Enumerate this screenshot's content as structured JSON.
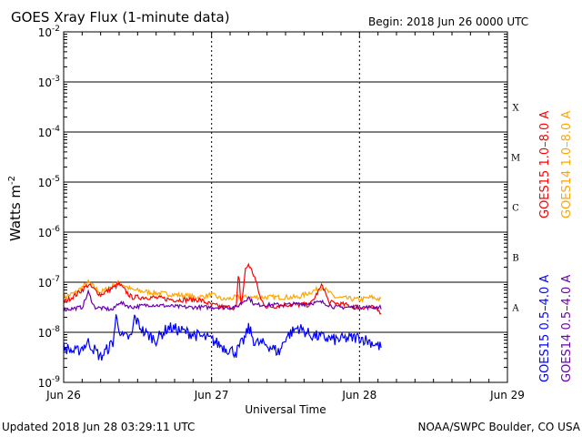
{
  "chart_data": {
    "type": "line",
    "title": "GOES Xray Flux (1-minute data)",
    "begin_label": "Begin:  2018 Jun 26 0000 UTC",
    "xlabel": "Universal Time",
    "ylabel": "Watts m",
    "ylabel_sup": "-2",
    "x_unit": "hours since 2018 Jun 26 0000 UTC",
    "xlim": [
      0,
      72
    ],
    "ylim": [
      1e-09,
      0.01
    ],
    "yscale": "log",
    "x_ticks": [
      {
        "h": 0,
        "label": "Jun 26"
      },
      {
        "h": 24,
        "label": "Jun 27"
      },
      {
        "h": 48,
        "label": "Jun 28"
      },
      {
        "h": 72,
        "label": "Jun 29"
      }
    ],
    "y_ticks": [
      {
        "exp": -2,
        "label": "-2"
      },
      {
        "exp": -3,
        "label": "-3"
      },
      {
        "exp": -4,
        "label": "-4"
      },
      {
        "exp": -5,
        "label": "-5"
      },
      {
        "exp": -6,
        "label": "-6"
      },
      {
        "exp": -7,
        "label": "-7"
      },
      {
        "exp": -8,
        "label": "-8"
      },
      {
        "exp": -9,
        "label": "-9"
      }
    ],
    "flare_classes": [
      {
        "exp": -3.5,
        "label": "X"
      },
      {
        "exp": -4.5,
        "label": "M"
      },
      {
        "exp": -5.5,
        "label": "C"
      },
      {
        "exp": -6.5,
        "label": "B"
      },
      {
        "exp": -7.5,
        "label": "A"
      }
    ],
    "grid": true,
    "series": [
      {
        "name": "GOES14 1.0-8.0 A",
        "color": "#ffa500",
        "noise": 0.05,
        "points": [
          [
            0,
            -7.3
          ],
          [
            2,
            -7.2
          ],
          [
            4,
            -7.0
          ],
          [
            6,
            -7.2
          ],
          [
            9,
            -7.0
          ],
          [
            11,
            -7.15
          ],
          [
            14,
            -7.2
          ],
          [
            18,
            -7.25
          ],
          [
            22,
            -7.3
          ],
          [
            24,
            -7.25
          ],
          [
            26,
            -7.35
          ],
          [
            28,
            -7.3
          ],
          [
            30,
            -7.3
          ],
          [
            34,
            -7.3
          ],
          [
            38,
            -7.3
          ],
          [
            42,
            -7.1
          ],
          [
            44,
            -7.3
          ],
          [
            48,
            -7.35
          ],
          [
            50,
            -7.3
          ],
          [
            51.5,
            -7.35
          ]
        ]
      },
      {
        "name": "GOES15 1.0-8.0 A",
        "color": "#ff0000",
        "noise": 0.05,
        "points": [
          [
            0,
            -7.4
          ],
          [
            2,
            -7.25
          ],
          [
            4,
            -7.05
          ],
          [
            6,
            -7.25
          ],
          [
            9,
            -7.04
          ],
          [
            11,
            -7.3
          ],
          [
            14,
            -7.3
          ],
          [
            18,
            -7.35
          ],
          [
            22,
            -7.35
          ],
          [
            24,
            -7.45
          ],
          [
            26,
            -7.5
          ],
          [
            28,
            -7.5
          ],
          [
            28.4,
            -6.8
          ],
          [
            28.8,
            -7.5
          ],
          [
            29.5,
            -6.75
          ],
          [
            30,
            -6.64
          ],
          [
            31,
            -6.9
          ],
          [
            32,
            -7.35
          ],
          [
            33,
            -7.5
          ],
          [
            36,
            -7.45
          ],
          [
            40,
            -7.45
          ],
          [
            42,
            -7.05
          ],
          [
            43,
            -7.4
          ],
          [
            48,
            -7.5
          ],
          [
            50,
            -7.5
          ],
          [
            51.5,
            -7.6
          ]
        ]
      },
      {
        "name": "GOES14 0.5-4.0 A",
        "color": "#6a00b0",
        "noise": 0.04,
        "points": [
          [
            0,
            -7.55
          ],
          [
            3,
            -7.5
          ],
          [
            4,
            -7.2
          ],
          [
            5,
            -7.5
          ],
          [
            8,
            -7.55
          ],
          [
            9,
            -7.4
          ],
          [
            11,
            -7.5
          ],
          [
            14,
            -7.45
          ],
          [
            20,
            -7.5
          ],
          [
            24,
            -7.5
          ],
          [
            28,
            -7.5
          ],
          [
            30,
            -7.3
          ],
          [
            31,
            -7.45
          ],
          [
            36,
            -7.45
          ],
          [
            42,
            -7.4
          ],
          [
            44,
            -7.5
          ],
          [
            48,
            -7.5
          ],
          [
            51.5,
            -7.5
          ]
        ]
      },
      {
        "name": "GOES15 0.5-4.0 A",
        "color": "#0000ff",
        "noise": 0.12,
        "points": [
          [
            0,
            -8.3
          ],
          [
            2,
            -8.4
          ],
          [
            4,
            -8.2
          ],
          [
            6,
            -8.5
          ],
          [
            8,
            -8.2
          ],
          [
            8.5,
            -7.7
          ],
          [
            9.5,
            -8.1
          ],
          [
            11,
            -8.1
          ],
          [
            11.5,
            -7.7
          ],
          [
            13,
            -8.0
          ],
          [
            15,
            -8.15
          ],
          [
            17,
            -7.9
          ],
          [
            20,
            -8.0
          ],
          [
            24,
            -8.15
          ],
          [
            26,
            -8.3
          ],
          [
            28,
            -8.4
          ],
          [
            29.5,
            -8.1
          ],
          [
            30,
            -7.9
          ],
          [
            31,
            -8.2
          ],
          [
            33,
            -8.25
          ],
          [
            35,
            -8.4
          ],
          [
            36,
            -8.1
          ],
          [
            38,
            -7.9
          ],
          [
            40,
            -8.05
          ],
          [
            44,
            -8.15
          ],
          [
            48,
            -8.1
          ],
          [
            50,
            -8.2
          ],
          [
            51.5,
            -8.3
          ]
        ]
      }
    ],
    "legend": "right-vertical"
  },
  "footer": {
    "updated": "Updated 2018 Jun 28 03:29:11 UTC",
    "credit": "NOAA/SWPC Boulder, CO USA"
  }
}
